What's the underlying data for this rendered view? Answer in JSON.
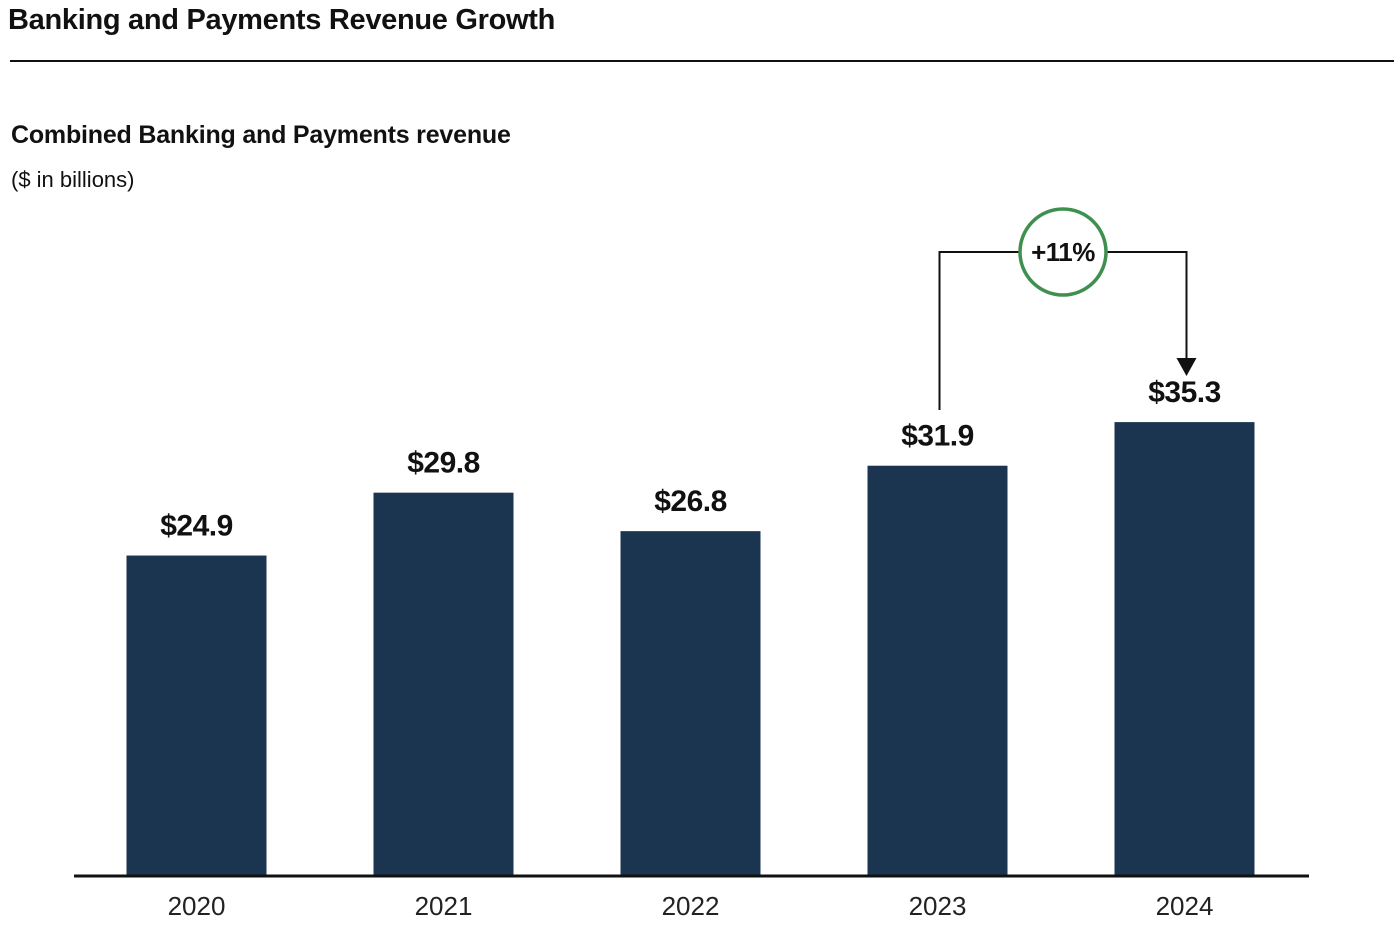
{
  "header": {
    "title": "Banking and Payments Revenue Growth"
  },
  "chart": {
    "title": "Combined Banking and Payments revenue",
    "subtitle": "($ in billions)"
  },
  "colors": {
    "bar": "#1b3550",
    "axis": "#111111",
    "growth_circle": "#3f8f4f",
    "bracket": "#111111"
  },
  "chart_data": {
    "type": "bar",
    "title": "Combined Banking and Payments revenue",
    "subtitle": "($ in billions)",
    "xlabel": "",
    "ylabel": "",
    "categories": [
      "2020",
      "2021",
      "2022",
      "2023",
      "2024"
    ],
    "values": [
      24.9,
      29.8,
      26.8,
      31.9,
      35.3
    ],
    "value_labels": [
      "$24.9",
      "$29.8",
      "$26.8",
      "$31.9",
      "$35.3"
    ],
    "ylim": [
      0,
      50
    ],
    "grid": false,
    "legend": "none",
    "annotation": {
      "text": "+11%",
      "from": "2023",
      "to": "2024",
      "style": "growth-bracket-circle"
    }
  }
}
